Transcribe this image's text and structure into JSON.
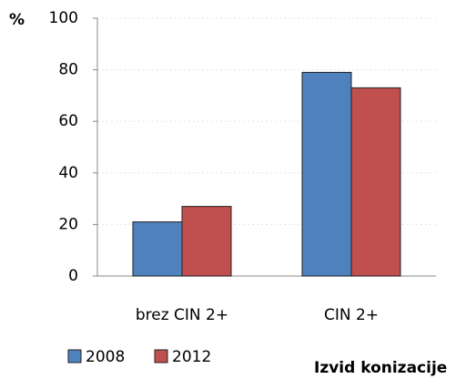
{
  "chart_data": {
    "type": "bar",
    "y_label": "%",
    "x_label": "Izvid konizacije",
    "categories": [
      "brez CIN 2+",
      "CIN 2+"
    ],
    "series": [
      {
        "name": "2008",
        "color": "#4f81bd",
        "values": [
          21,
          79
        ]
      },
      {
        "name": "2012",
        "color": "#c0504d",
        "values": [
          27,
          73
        ]
      }
    ],
    "ylim": [
      0,
      100
    ],
    "yticks": [
      0,
      20,
      40,
      60,
      80,
      100
    ],
    "grid": true
  }
}
